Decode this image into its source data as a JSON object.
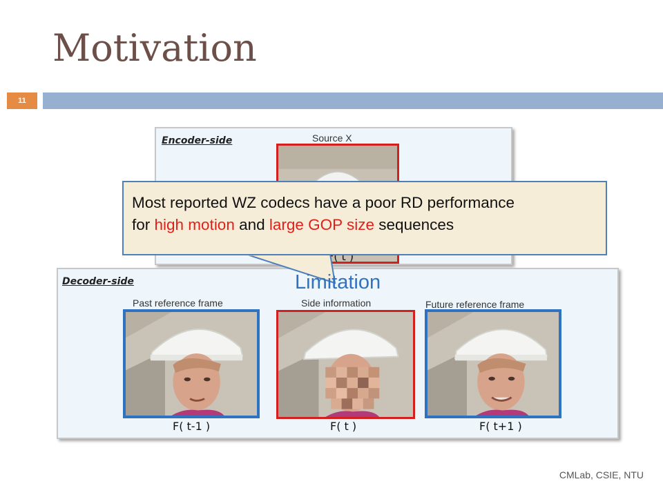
{
  "slide": {
    "title": "Motivation",
    "number": "11",
    "footer": "CMLab, CSIE, NTU"
  },
  "encoder": {
    "label": "Encoder-side",
    "source_caption": "Source X",
    "hidden_label": "F( t )"
  },
  "decoder": {
    "label": "Decoder-side",
    "frames": [
      {
        "caption": "Past reference  frame",
        "label": "F( t-1 )"
      },
      {
        "caption": "Side information",
        "label": "F( t )"
      },
      {
        "caption": "Future reference  frame",
        "label": "F( t+1 )"
      }
    ]
  },
  "callout": {
    "line1": "Most reported WZ codecs have a poor RD performance",
    "line2_prefix": "for ",
    "line2_highlight1": "high motion",
    "line2_middle": " and ",
    "line2_highlight2": "large GOP size",
    "line2_suffix": " sequences",
    "tag": "Limitation"
  },
  "colors": {
    "title": "#6b4f48",
    "slide_number_bg": "#e58b43",
    "title_bar": "#97b0cf",
    "frame_reference": "#2f72c2",
    "frame_current": "#d41f1f",
    "highlight": "#e0201b",
    "callout_bg": "#f6edd8"
  }
}
